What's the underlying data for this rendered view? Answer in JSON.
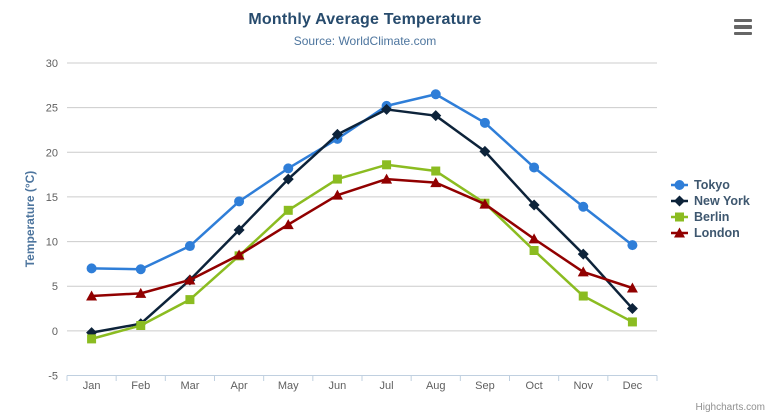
{
  "chart_data": {
    "type": "line",
    "title": "Monthly Average Temperature",
    "subtitle": "Source: WorldClimate.com",
    "xlabel": "",
    "ylabel": "Temperature (°C)",
    "categories": [
      "Jan",
      "Feb",
      "Mar",
      "Apr",
      "May",
      "Jun",
      "Jul",
      "Aug",
      "Sep",
      "Oct",
      "Nov",
      "Dec"
    ],
    "ylim": [
      -5,
      30
    ],
    "ytick_interval": 5,
    "grid": true,
    "legend_position": "right-middle",
    "series": [
      {
        "name": "Tokyo",
        "color": "#2f7ed8",
        "marker": "circle",
        "values": [
          7.0,
          6.9,
          9.5,
          14.5,
          18.2,
          21.5,
          25.2,
          26.5,
          23.3,
          18.3,
          13.9,
          9.6
        ]
      },
      {
        "name": "New York",
        "color": "#0d233a",
        "marker": "diamond",
        "values": [
          -0.2,
          0.8,
          5.7,
          11.3,
          17.0,
          22.0,
          24.8,
          24.1,
          20.1,
          14.1,
          8.6,
          2.5
        ]
      },
      {
        "name": "Berlin",
        "color": "#8bbc21",
        "marker": "square",
        "values": [
          -0.9,
          0.6,
          3.5,
          8.4,
          13.5,
          17.0,
          18.6,
          17.9,
          14.3,
          9.0,
          3.9,
          1.0
        ]
      },
      {
        "name": "London",
        "color": "#910000",
        "marker": "triangle",
        "values": [
          3.9,
          4.2,
          5.7,
          8.5,
          11.9,
          15.2,
          17.0,
          16.6,
          14.2,
          10.3,
          6.6,
          4.8
        ]
      }
    ],
    "colors": {
      "grid": "#cccccc",
      "axis_line": "#c0d0e0",
      "tick_label": "#606060",
      "title": "#274b6d",
      "subtitle": "#4d759e",
      "axis_title": "#4d759e",
      "legend_text": "#3e576f",
      "credits": "#909090",
      "menu_icon": "#666666"
    }
  },
  "credits": {
    "label": "Highcharts.com"
  },
  "icons": {
    "context_menu": "hamburger-icon"
  }
}
